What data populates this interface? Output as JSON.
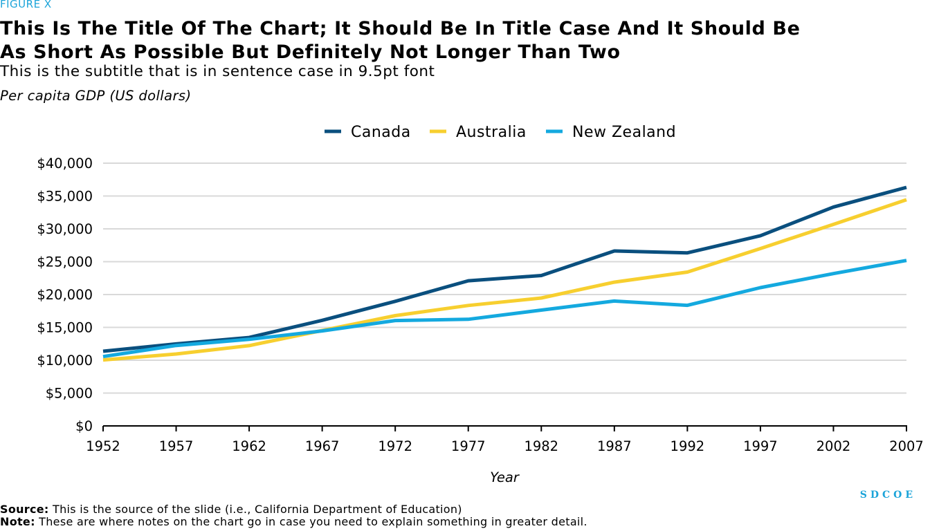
{
  "figure_label": "FIGURE X",
  "title": "This Is The Title Of The Chart; It Should Be In Title Case And It Should Be As Short As Possible But Definitely Not Longer Than Two",
  "subtitle": "This is the subtitle that is in sentence case in 9.5pt font",
  "units_label": "Per capita GDP (US dollars)",
  "source": {
    "label": "Source:",
    "text": " This is the source of the slide (i.e., California Department of Education)"
  },
  "note": {
    "label": "Note:",
    "text": " These are where notes on the chart go in case you need to explain something in greater detail."
  },
  "brand": "SDCOE",
  "colors": {
    "canada": "#0a4f7e",
    "australia": "#f7cf2f",
    "new_zealand": "#14a9df",
    "grid": "#d9d9d9",
    "axis": "#000000",
    "accent": "#1ca4d9"
  },
  "chart_data": {
    "type": "line",
    "title": "This Is The Title Of The Chart; It Should Be In Title Case And It Should Be As Short As Possible But Definitely Not Longer Than Two",
    "xlabel": "Year",
    "ylabel": "",
    "x": [
      1952,
      1957,
      1962,
      1967,
      1972,
      1977,
      1982,
      1987,
      1992,
      1997,
      2002,
      2007
    ],
    "ylim": [
      0,
      40000
    ],
    "yticks": [
      0,
      5000,
      10000,
      15000,
      20000,
      25000,
      30000,
      35000,
      40000
    ],
    "ytick_labels": [
      "$0",
      "$5,000",
      "$10,000",
      "$15,000",
      "$20,000",
      "$25,000",
      "$30,000",
      "$35,000",
      "$40,000"
    ],
    "grid": true,
    "legend": "top-center",
    "series": [
      {
        "name": "Canada",
        "color": "#0a4f7e",
        "values": [
          11367,
          12490,
          13462,
          16077,
          18971,
          22091,
          22899,
          26627,
          26343,
          28955,
          33329,
          36319
        ]
      },
      {
        "name": "Australia",
        "color": "#f7cf2f",
        "values": [
          10040,
          10950,
          12217,
          14526,
          16789,
          18334,
          19477,
          21889,
          23425,
          26998,
          30688,
          34435
        ]
      },
      {
        "name": "New Zealand",
        "color": "#14a9df",
        "values": [
          10557,
          12247,
          13176,
          14464,
          16046,
          16234,
          17632,
          19007,
          18363,
          21050,
          23190,
          25185
        ]
      }
    ]
  }
}
